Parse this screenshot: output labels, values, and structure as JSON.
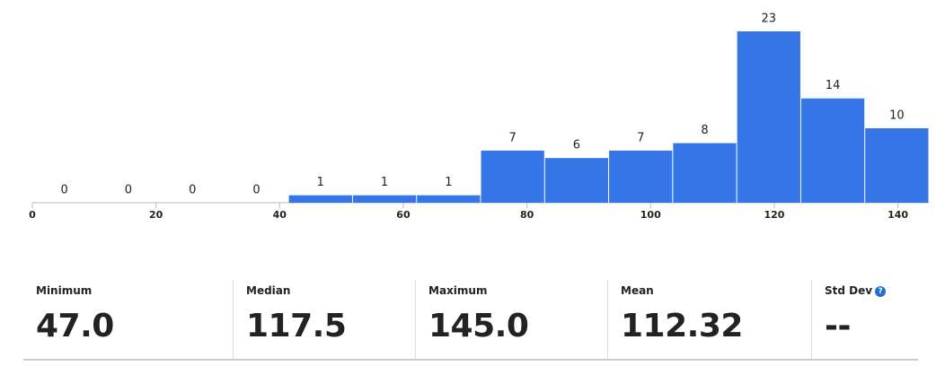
{
  "chart_data": {
    "type": "histogram",
    "bins": [
      0,
      10.357,
      20.714,
      31.071,
      41.429,
      51.786,
      62.143,
      72.5,
      82.857,
      93.214,
      103.571,
      113.929,
      124.286,
      134.643,
      145
    ],
    "values": [
      0,
      0,
      0,
      0,
      1,
      1,
      1,
      7,
      6,
      7,
      8,
      23,
      14,
      10
    ],
    "color": "#3575e6",
    "xlim": [
      0,
      145
    ],
    "xticks": [
      0,
      20,
      40,
      60,
      80,
      100,
      120,
      140
    ]
  },
  "stats": [
    {
      "label": "Minimum",
      "value": "47.0"
    },
    {
      "label": "Median",
      "value": "117.5"
    },
    {
      "label": "Maximum",
      "value": "145.0"
    },
    {
      "label": "Mean",
      "value": "112.32"
    },
    {
      "label": "Std Dev",
      "value": "--"
    }
  ]
}
